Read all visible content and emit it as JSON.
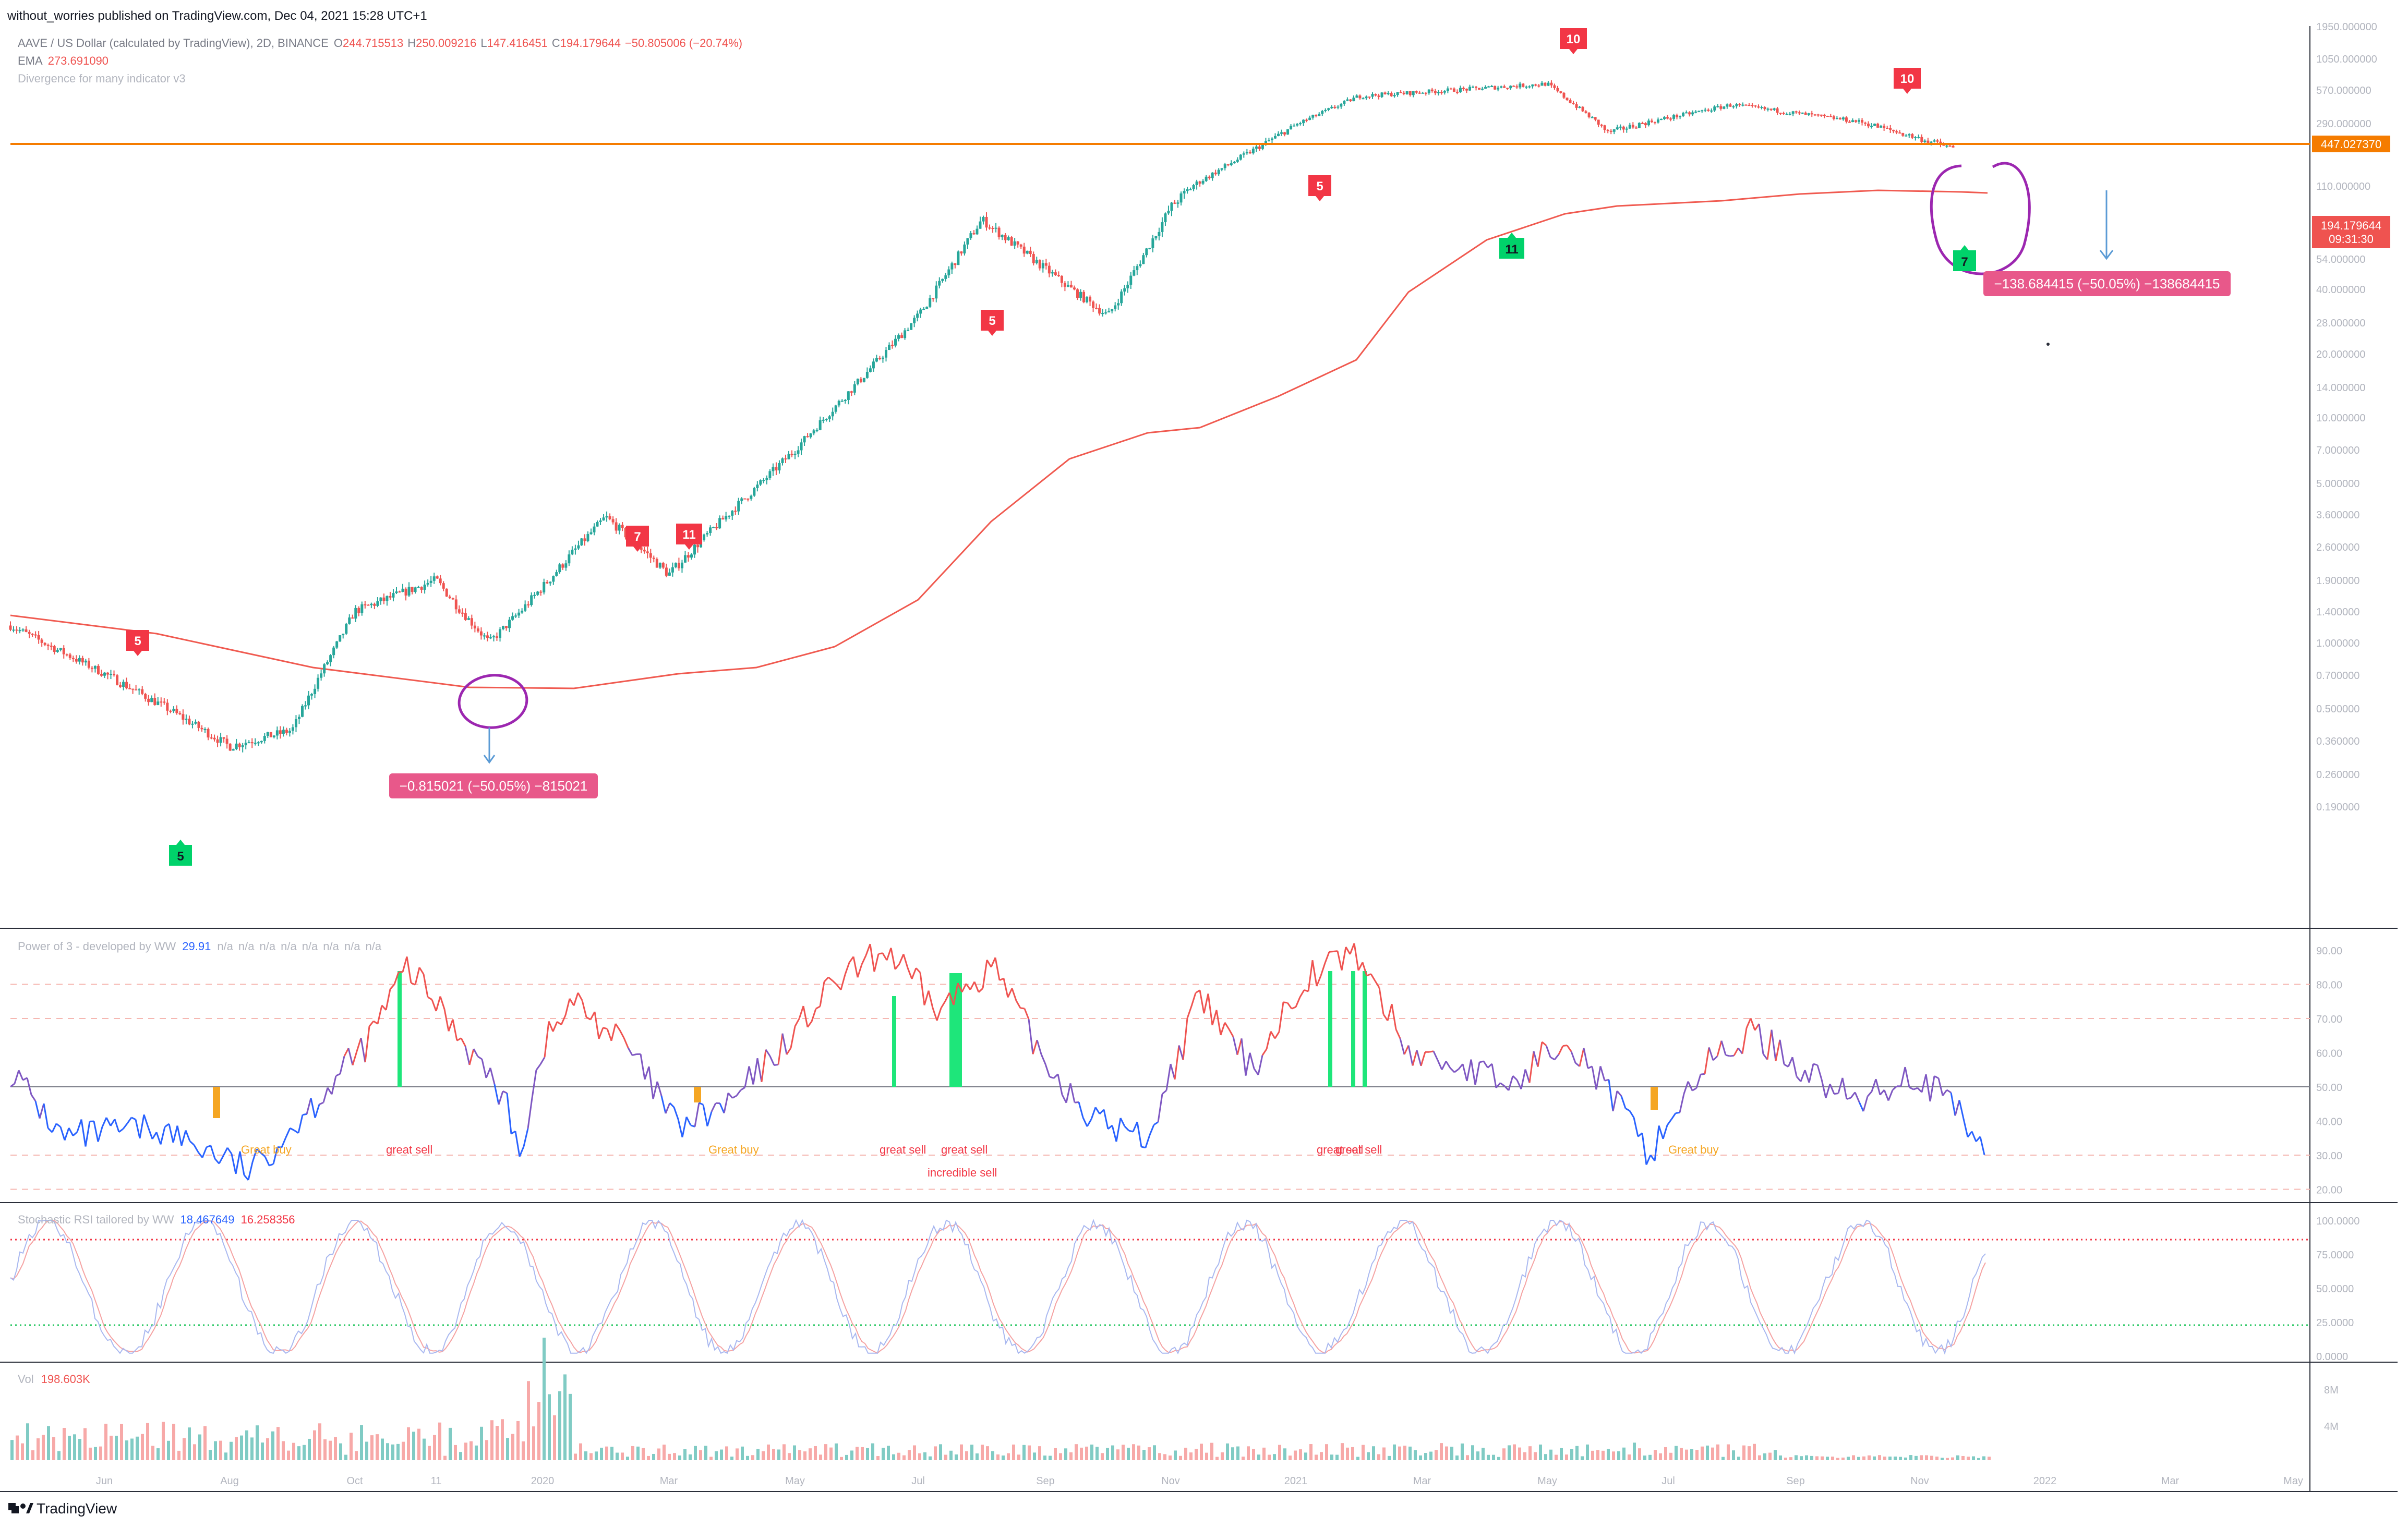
{
  "header": {
    "published": "without_worries published on TradingView.com, Dec 04, 2021 15:28 UTC+1"
  },
  "legend": {
    "symbol": "AAVE / US Dollar (calculated by TradingView), 2D, BINANCE",
    "o_label": "O",
    "o_value": "244.715513",
    "h_label": "H",
    "h_value": "250.009216",
    "l_label": "L",
    "l_value": "147.416451",
    "c_label": "C",
    "c_value": "194.179644",
    "change": "−50.805006 (−20.74%)",
    "ema_label": "EMA",
    "ema_value": "273.691090",
    "div_label": "Divergence for many indicator v3"
  },
  "price_axis": {
    "labels": [
      "1950.000000",
      "1050.000000",
      "570.000000",
      "290.000000",
      "110.000000",
      "78.000000",
      "54.000000",
      "40.000000",
      "28.000000",
      "20.000000",
      "14.000000",
      "10.000000",
      "7.000000",
      "5.000000",
      "3.600000",
      "2.600000",
      "1.900000",
      "1.400000",
      "1.000000",
      "0.700000",
      "0.500000",
      "0.360000",
      "0.260000",
      "0.190000"
    ],
    "hline_badge": "447.027370",
    "price_badge": "194.179644",
    "countdown": "09:31:30"
  },
  "signals": {
    "red_labels": [
      "5",
      "7",
      "11",
      "5",
      "5",
      "10",
      "10"
    ],
    "green_labels": [
      "5",
      "11",
      "7"
    ]
  },
  "measures": {
    "left": "−0.815021 (−50.05%) −815021",
    "right": "−138.684415 (−50.05%) −138684415"
  },
  "pane_power": {
    "title": "Power of 3 - developed by WW",
    "value": "29.91",
    "na": [
      "n/a",
      "n/a",
      "n/a",
      "n/a",
      "n/a",
      "n/a",
      "n/a",
      "n/a"
    ],
    "axis": [
      "90.00",
      "80.00",
      "70.00",
      "60.00",
      "50.00",
      "40.00",
      "30.00",
      "20.00"
    ],
    "annotations": {
      "great_buy_1": "Great buy",
      "great_sell_1": "great sell",
      "great_buy_2": "Great buy",
      "great_sell_2": "great sell",
      "great_sell_3": "great sell",
      "incredible_sell": "incredible sell",
      "great_sell_4": "great sell",
      "great_sell_5": "great sell",
      "great_buy_3": "Great buy"
    }
  },
  "pane_stoch": {
    "title": "Stochastic RSI tailored by WW",
    "k_value": "18.467649",
    "d_value": "16.258356",
    "axis": [
      "100.0000",
      "75.0000",
      "50.0000",
      "25.0000",
      "0.0000"
    ]
  },
  "pane_volume": {
    "title": "Vol",
    "value": "198.603K",
    "axis": [
      "8M",
      "4M"
    ]
  },
  "time_axis": {
    "labels": [
      "Jun",
      "Aug",
      "Oct",
      "11",
      "2020",
      "Mar",
      "May",
      "Jul",
      "Sep",
      "Nov",
      "2021",
      "Mar",
      "May",
      "Jul",
      "Sep",
      "Nov",
      "2022",
      "Mar",
      "May"
    ]
  },
  "footer": {
    "brand": "TradingView"
  },
  "colors": {
    "up": "#26a69a",
    "down": "#ef5350",
    "ema": "#f05a50",
    "hline": "#f57c00",
    "signal_red": "#f23645",
    "signal_green": "#00d26a",
    "circle": "#9c27b0",
    "measure": "#e8588a",
    "arrow": "#2962ff"
  },
  "chart_data": {
    "type": "candlestick",
    "symbol": "AAVE / US Dollar",
    "interval": "2D",
    "x_range": [
      "Apr 2019",
      "May 2022"
    ],
    "y_scale": "log",
    "ema": "273.691090",
    "horizontal_line": "447.027370",
    "last_price": "194.179644",
    "key_points": [
      {
        "date": "Apr 2019",
        "price": 1.2
      },
      {
        "date": "Jul 2019",
        "price": 0.5
      },
      {
        "date": "Aug 2019",
        "price": 0.34
      },
      {
        "date": "Sep 2019",
        "price": 0.4
      },
      {
        "date": "Oct 2019",
        "price": 1.4
      },
      {
        "date": "Nov 2019",
        "price": 1.9
      },
      {
        "date": "Dec 2019",
        "price": 1.0
      },
      {
        "date": "Feb 2020",
        "price": 3.5
      },
      {
        "date": "Mar 2020",
        "price": 2.0
      },
      {
        "date": "May 2020",
        "price": 7.0
      },
      {
        "date": "Jul 2020",
        "price": 30
      },
      {
        "date": "Aug 2020",
        "price": 80
      },
      {
        "date": "Oct 2020",
        "price": 30
      },
      {
        "date": "Nov 2020",
        "price": 90
      },
      {
        "date": "Feb 2021",
        "price": 500
      },
      {
        "date": "May 2021",
        "price": 640
      },
      {
        "date": "Jun 2021",
        "price": 250
      },
      {
        "date": "Aug 2021",
        "price": 420
      },
      {
        "date": "Oct 2021",
        "price": 300
      },
      {
        "date": "Dec 2021",
        "price": 194.18
      }
    ]
  }
}
